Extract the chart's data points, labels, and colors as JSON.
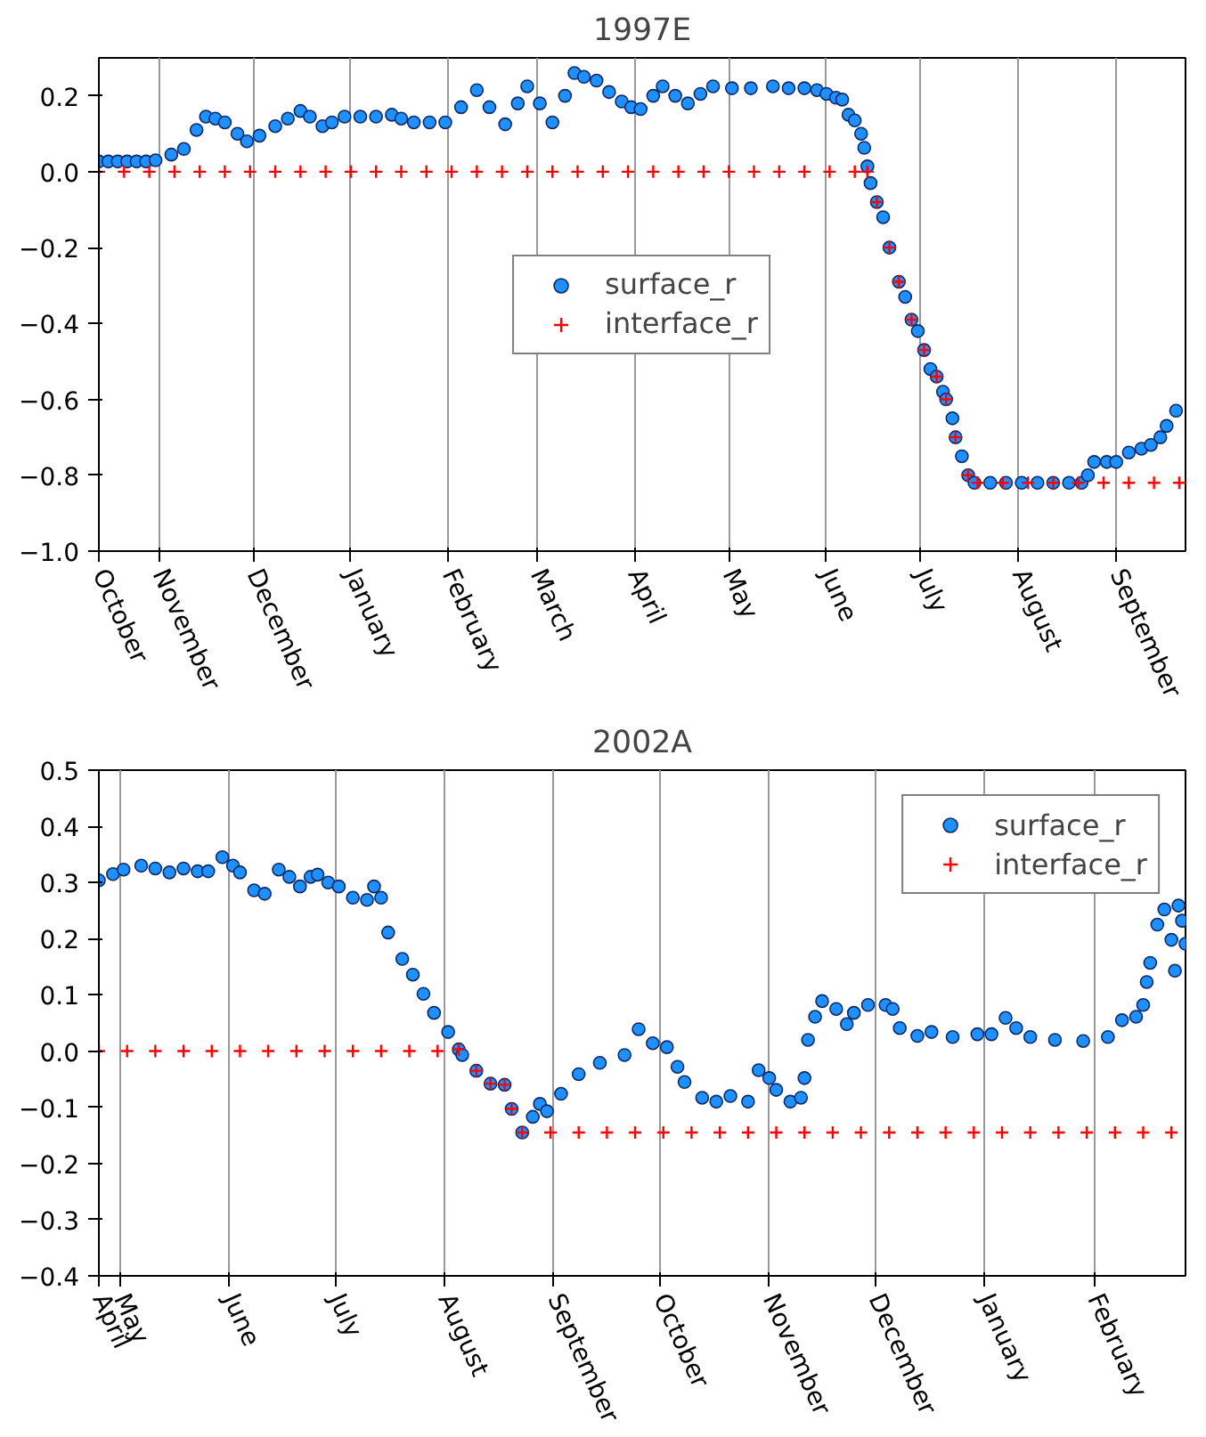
{
  "chart_data": [
    {
      "type": "scatter",
      "title": "1997E",
      "xlim": [
        "1997-10-13",
        "1998-09-23"
      ],
      "ylim": [
        -1.0,
        0.3
      ],
      "xticks": [
        {
          "value": "1997-10-13",
          "label": "October"
        },
        {
          "value": "1997-11-01",
          "label": "November"
        },
        {
          "value": "1997-12-01",
          "label": "December"
        },
        {
          "value": "1998-01-01",
          "label": "January"
        },
        {
          "value": "1998-02-01",
          "label": "February"
        },
        {
          "value": "1998-03-01",
          "label": "March"
        },
        {
          "value": "1998-04-01",
          "label": "April"
        },
        {
          "value": "1998-05-01",
          "label": "May"
        },
        {
          "value": "1998-06-01",
          "label": "June"
        },
        {
          "value": "1998-07-01",
          "label": "July"
        },
        {
          "value": "1998-08-01",
          "label": "August"
        },
        {
          "value": "1998-09-01",
          "label": "September"
        }
      ],
      "yticks": [
        {
          "value": -1.0,
          "label": "−1.0"
        },
        {
          "value": -0.8,
          "label": "−0.8"
        },
        {
          "value": -0.6,
          "label": "−0.6"
        },
        {
          "value": -0.4,
          "label": "−0.4"
        },
        {
          "value": -0.2,
          "label": "−0.2"
        },
        {
          "value": 0.0,
          "label": "0.0"
        },
        {
          "value": 0.2,
          "label": "0.2"
        }
      ],
      "grid": "x",
      "legend": "center",
      "series": [
        {
          "name": "surface_r",
          "color": "#1e90ff",
          "marker": "circle",
          "x": [
            "1997-10-13",
            "1997-10-16",
            "1997-10-19",
            "1997-10-22",
            "1997-10-25",
            "1997-10-28",
            "1997-10-31",
            "1997-11-05",
            "1997-11-09",
            "1997-11-13",
            "1997-11-16",
            "1997-11-19",
            "1997-11-22",
            "1997-11-26",
            "1997-11-29",
            "1997-12-03",
            "1997-12-08",
            "1997-12-12",
            "1997-12-16",
            "1997-12-19",
            "1997-12-23",
            "1997-12-26",
            "1997-12-30",
            "1998-01-04",
            "1998-01-09",
            "1998-01-14",
            "1998-01-17",
            "1998-01-21",
            "1998-01-26",
            "1998-01-31",
            "1998-02-05",
            "1998-02-10",
            "1998-02-14",
            "1998-02-19",
            "1998-02-23",
            "1998-02-26",
            "1998-03-02",
            "1998-03-06",
            "1998-03-10",
            "1998-03-13",
            "1998-03-16",
            "1998-03-20",
            "1998-03-24",
            "1998-03-28",
            "1998-03-31",
            "1998-04-03",
            "1998-04-07",
            "1998-04-10",
            "1998-04-14",
            "1998-04-18",
            "1998-04-22",
            "1998-04-26",
            "1998-05-02",
            "1998-05-08",
            "1998-05-15",
            "1998-05-20",
            "1998-05-25",
            "1998-05-29",
            "1998-06-01",
            "1998-06-04",
            "1998-06-06",
            "1998-06-08",
            "1998-06-10",
            "1998-06-12",
            "1998-06-13",
            "1998-06-14",
            "1998-06-15",
            "1998-06-17",
            "1998-06-19",
            "1998-06-21",
            "1998-06-24",
            "1998-06-26",
            "1998-06-28",
            "1998-06-30",
            "1998-07-02",
            "1998-07-04",
            "1998-07-06",
            "1998-07-08",
            "1998-07-09",
            "1998-07-11",
            "1998-07-12",
            "1998-07-14",
            "1998-07-16",
            "1998-07-18",
            "1998-07-23",
            "1998-07-28",
            "1998-08-02",
            "1998-08-07",
            "1998-08-12",
            "1998-08-17",
            "1998-08-21",
            "1998-08-23",
            "1998-08-25",
            "1998-08-29",
            "1998-09-01",
            "1998-09-05",
            "1998-09-09",
            "1998-09-12",
            "1998-09-15",
            "1998-09-17",
            "1998-09-20"
          ],
          "values": [
            0.027,
            0.027,
            0.027,
            0.027,
            0.027,
            0.027,
            0.03,
            0.045,
            0.06,
            0.11,
            0.145,
            0.14,
            0.13,
            0.1,
            0.08,
            0.095,
            0.12,
            0.14,
            0.16,
            0.145,
            0.12,
            0.13,
            0.145,
            0.145,
            0.145,
            0.15,
            0.14,
            0.13,
            0.13,
            0.13,
            0.17,
            0.215,
            0.17,
            0.125,
            0.18,
            0.225,
            0.18,
            0.13,
            0.2,
            0.26,
            0.25,
            0.24,
            0.21,
            0.185,
            0.17,
            0.165,
            0.2,
            0.225,
            0.2,
            0.18,
            0.205,
            0.225,
            0.22,
            0.22,
            0.225,
            0.22,
            0.22,
            0.215,
            0.205,
            0.195,
            0.19,
            0.15,
            0.135,
            0.1,
            0.063,
            0.014,
            -0.03,
            -0.08,
            -0.12,
            -0.2,
            -0.29,
            -0.33,
            -0.39,
            -0.42,
            -0.47,
            -0.52,
            -0.54,
            -0.58,
            -0.6,
            -0.65,
            -0.7,
            -0.75,
            -0.8,
            -0.82,
            -0.82,
            -0.82,
            -0.82,
            -0.82,
            -0.82,
            -0.82,
            -0.82,
            -0.8,
            -0.765,
            -0.765,
            -0.765,
            -0.74,
            -0.73,
            -0.72,
            -0.7,
            -0.67,
            -0.63
          ]
        },
        {
          "name": "interface_r",
          "color": "#ff0000",
          "marker": "cross",
          "x": [
            "1997-10-13",
            "1997-10-21",
            "1997-10-29",
            "1997-11-06",
            "1997-11-14",
            "1997-11-22",
            "1997-11-30",
            "1997-12-08",
            "1997-12-16",
            "1997-12-24",
            "1998-01-01",
            "1998-01-09",
            "1998-01-17",
            "1998-01-25",
            "1998-02-02",
            "1998-02-10",
            "1998-02-18",
            "1998-02-26",
            "1998-03-06",
            "1998-03-14",
            "1998-03-22",
            "1998-03-30",
            "1998-04-07",
            "1998-04-15",
            "1998-04-23",
            "1998-05-01",
            "1998-05-09",
            "1998-05-17",
            "1998-05-25",
            "1998-06-02",
            "1998-06-10",
            "1998-06-14",
            "1998-06-17",
            "1998-06-21",
            "1998-06-24",
            "1998-06-28",
            "1998-07-02",
            "1998-07-06",
            "1998-07-09",
            "1998-07-12",
            "1998-07-16",
            "1998-07-19",
            "1998-07-27",
            "1998-08-04",
            "1998-08-12",
            "1998-08-20",
            "1998-08-28",
            "1998-09-05",
            "1998-09-13",
            "1998-09-21"
          ],
          "values": [
            0,
            0,
            0,
            0,
            0,
            0,
            0,
            0,
            0,
            0,
            0,
            0,
            0,
            0,
            0,
            0,
            0,
            0,
            0,
            0,
            0,
            0,
            0,
            0,
            0,
            0,
            0,
            0,
            0,
            0,
            0,
            0,
            -0.08,
            -0.2,
            -0.29,
            -0.39,
            -0.47,
            -0.54,
            -0.6,
            -0.7,
            -0.8,
            -0.82,
            -0.82,
            -0.82,
            -0.82,
            -0.82,
            -0.82,
            -0.82,
            -0.82,
            -0.82
          ]
        }
      ]
    },
    {
      "type": "scatter",
      "title": "2002A",
      "xlim": [
        "2002-04-25",
        "2003-02-27"
      ],
      "ylim": [
        -0.4,
        0.5
      ],
      "xticks": [
        {
          "value": "2002-04-25",
          "label": "April"
        },
        {
          "value": "2002-05-01",
          "label": "May"
        },
        {
          "value": "2002-06-01",
          "label": "June"
        },
        {
          "value": "2002-07-01",
          "label": "July"
        },
        {
          "value": "2002-08-01",
          "label": "August"
        },
        {
          "value": "2002-09-01",
          "label": "September"
        },
        {
          "value": "2002-10-01",
          "label": "October"
        },
        {
          "value": "2002-11-01",
          "label": "November"
        },
        {
          "value": "2002-12-01",
          "label": "December"
        },
        {
          "value": "2003-01-01",
          "label": "January"
        },
        {
          "value": "2003-02-01",
          "label": "February"
        }
      ],
      "yticks": [
        {
          "value": -0.4,
          "label": "−0.4"
        },
        {
          "value": -0.3,
          "label": "−0.3"
        },
        {
          "value": -0.2,
          "label": "−0.2"
        },
        {
          "value": -0.1,
          "label": "−0.1"
        },
        {
          "value": 0.0,
          "label": "0.0"
        },
        {
          "value": 0.1,
          "label": "0.1"
        },
        {
          "value": 0.2,
          "label": "0.2"
        },
        {
          "value": 0.3,
          "label": "0.3"
        },
        {
          "value": 0.4,
          "label": "0.4"
        },
        {
          "value": 0.5,
          "label": "0.5"
        }
      ],
      "grid": "x",
      "legend": "top right",
      "series": [
        {
          "name": "surface_r",
          "color": "#1e90ff",
          "marker": "circle",
          "x": [
            "2002-04-25",
            "2002-04-29",
            "2002-05-02",
            "2002-05-07",
            "2002-05-11",
            "2002-05-15",
            "2002-05-19",
            "2002-05-23",
            "2002-05-26",
            "2002-05-30",
            "2002-06-02",
            "2002-06-04",
            "2002-06-08",
            "2002-06-11",
            "2002-06-15",
            "2002-06-18",
            "2002-06-21",
            "2002-06-24",
            "2002-06-26",
            "2002-06-29",
            "2002-07-02",
            "2002-07-06",
            "2002-07-10",
            "2002-07-12",
            "2002-07-14",
            "2002-07-16",
            "2002-07-20",
            "2002-07-23",
            "2002-07-26",
            "2002-07-29",
            "2002-08-02",
            "2002-08-05",
            "2002-08-06",
            "2002-08-10",
            "2002-08-14",
            "2002-08-18",
            "2002-08-20",
            "2002-08-23",
            "2002-08-26",
            "2002-08-28",
            "2002-08-30",
            "2002-09-03",
            "2002-09-08",
            "2002-09-14",
            "2002-09-21",
            "2002-09-25",
            "2002-09-29",
            "2002-10-03",
            "2002-10-06",
            "2002-10-08",
            "2002-10-13",
            "2002-10-17",
            "2002-10-21",
            "2002-10-26",
            "2002-10-29",
            "2002-11-01",
            "2002-11-03",
            "2002-11-07",
            "2002-11-10",
            "2002-11-11",
            "2002-11-12",
            "2002-11-14",
            "2002-11-16",
            "2002-11-20",
            "2002-11-23",
            "2002-11-25",
            "2002-11-29",
            "2002-12-04",
            "2002-12-06",
            "2002-12-08",
            "2002-12-13",
            "2002-12-17",
            "2002-12-23",
            "2002-12-30",
            "2003-01-03",
            "2003-01-07",
            "2003-01-10",
            "2003-01-14",
            "2003-01-21",
            "2003-01-29",
            "2003-02-05",
            "2003-02-09",
            "2003-02-13",
            "2003-02-15",
            "2003-02-16",
            "2003-02-17",
            "2003-02-19",
            "2003-02-21",
            "2003-02-23",
            "2003-02-24",
            "2003-02-25",
            "2003-02-26",
            "2003-02-27"
          ],
          "values": [
            0.304,
            0.315,
            0.323,
            0.33,
            0.325,
            0.318,
            0.325,
            0.32,
            0.32,
            0.345,
            0.33,
            0.318,
            0.286,
            0.28,
            0.323,
            0.31,
            0.293,
            0.31,
            0.314,
            0.3,
            0.293,
            0.273,
            0.269,
            0.293,
            0.273,
            0.211,
            0.164,
            0.136,
            0.102,
            0.068,
            0.034,
            0.003,
            -0.007,
            -0.035,
            -0.058,
            -0.06,
            -0.103,
            -0.145,
            -0.117,
            -0.094,
            -0.107,
            -0.076,
            -0.041,
            -0.021,
            -0.007,
            0.039,
            0.014,
            0.007,
            -0.028,
            -0.055,
            -0.083,
            -0.09,
            -0.08,
            -0.09,
            -0.034,
            -0.048,
            -0.069,
            -0.09,
            -0.083,
            -0.048,
            0.02,
            0.061,
            0.089,
            0.075,
            0.048,
            0.068,
            0.082,
            0.082,
            0.075,
            0.041,
            0.027,
            0.034,
            0.025,
            0.03,
            0.03,
            0.059,
            0.041,
            0.025,
            0.02,
            0.018,
            0.025,
            0.055,
            0.061,
            0.082,
            0.123,
            0.157,
            0.225,
            0.252,
            0.198,
            0.143,
            0.259,
            0.232,
            0.191
          ]
        },
        {
          "name": "interface_r",
          "color": "#ff0000",
          "marker": "cross",
          "x": [
            "2002-04-25",
            "2002-05-03",
            "2002-05-11",
            "2002-05-19",
            "2002-05-27",
            "2002-06-04",
            "2002-06-12",
            "2002-06-20",
            "2002-06-28",
            "2002-07-06",
            "2002-07-14",
            "2002-07-22",
            "2002-07-30",
            "2002-08-05",
            "2002-08-10",
            "2002-08-14",
            "2002-08-18",
            "2002-08-20",
            "2002-08-23",
            "2002-08-31",
            "2002-09-08",
            "2002-09-16",
            "2002-09-24",
            "2002-10-02",
            "2002-10-10",
            "2002-10-18",
            "2002-10-26",
            "2002-11-03",
            "2002-11-11",
            "2002-11-19",
            "2002-11-27",
            "2002-12-05",
            "2002-12-13",
            "2002-12-21",
            "2002-12-29",
            "2003-01-06",
            "2003-01-14",
            "2003-01-22",
            "2003-01-30",
            "2003-02-07",
            "2003-02-15",
            "2003-02-23"
          ],
          "values": [
            0,
            0,
            0,
            0,
            0,
            0,
            0,
            0,
            0,
            0,
            0,
            0,
            0,
            0.003,
            -0.035,
            -0.058,
            -0.06,
            -0.103,
            -0.145,
            -0.145,
            -0.145,
            -0.145,
            -0.145,
            -0.145,
            -0.145,
            -0.145,
            -0.145,
            -0.145,
            -0.145,
            -0.145,
            -0.145,
            -0.145,
            -0.145,
            -0.145,
            -0.145,
            -0.145,
            -0.145,
            -0.145,
            -0.145,
            -0.145,
            -0.145,
            -0.145
          ]
        }
      ]
    }
  ]
}
